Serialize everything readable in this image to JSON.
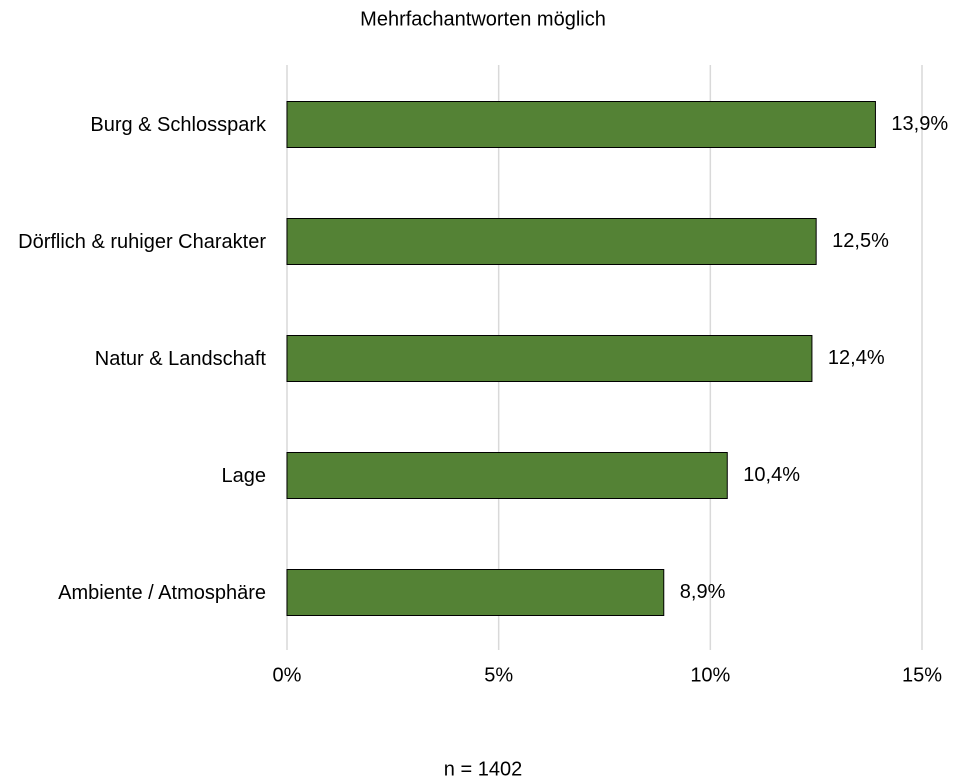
{
  "chart_data": {
    "type": "barh",
    "subtitle": "Mehrfachantworten möglich",
    "footnote": "n = 1402",
    "categories": [
      "Burg & Schlosspark",
      "Dörflich & ruhiger Charakter",
      "Natur & Landschaft",
      "Lage",
      "Ambiente / Atmosphäre"
    ],
    "values": [
      13.9,
      12.5,
      12.4,
      10.4,
      8.9
    ],
    "value_labels": [
      "13,9%",
      "12,5%",
      "12,4%",
      "10,4%",
      "8,9%"
    ],
    "color": "#548235",
    "xlim": [
      0,
      15
    ],
    "xticks": [
      {
        "value": 0,
        "label": "0%"
      },
      {
        "value": 5,
        "label": "5%"
      },
      {
        "value": 10,
        "label": "10%"
      },
      {
        "value": 15,
        "label": "15%"
      }
    ],
    "grid": true
  }
}
